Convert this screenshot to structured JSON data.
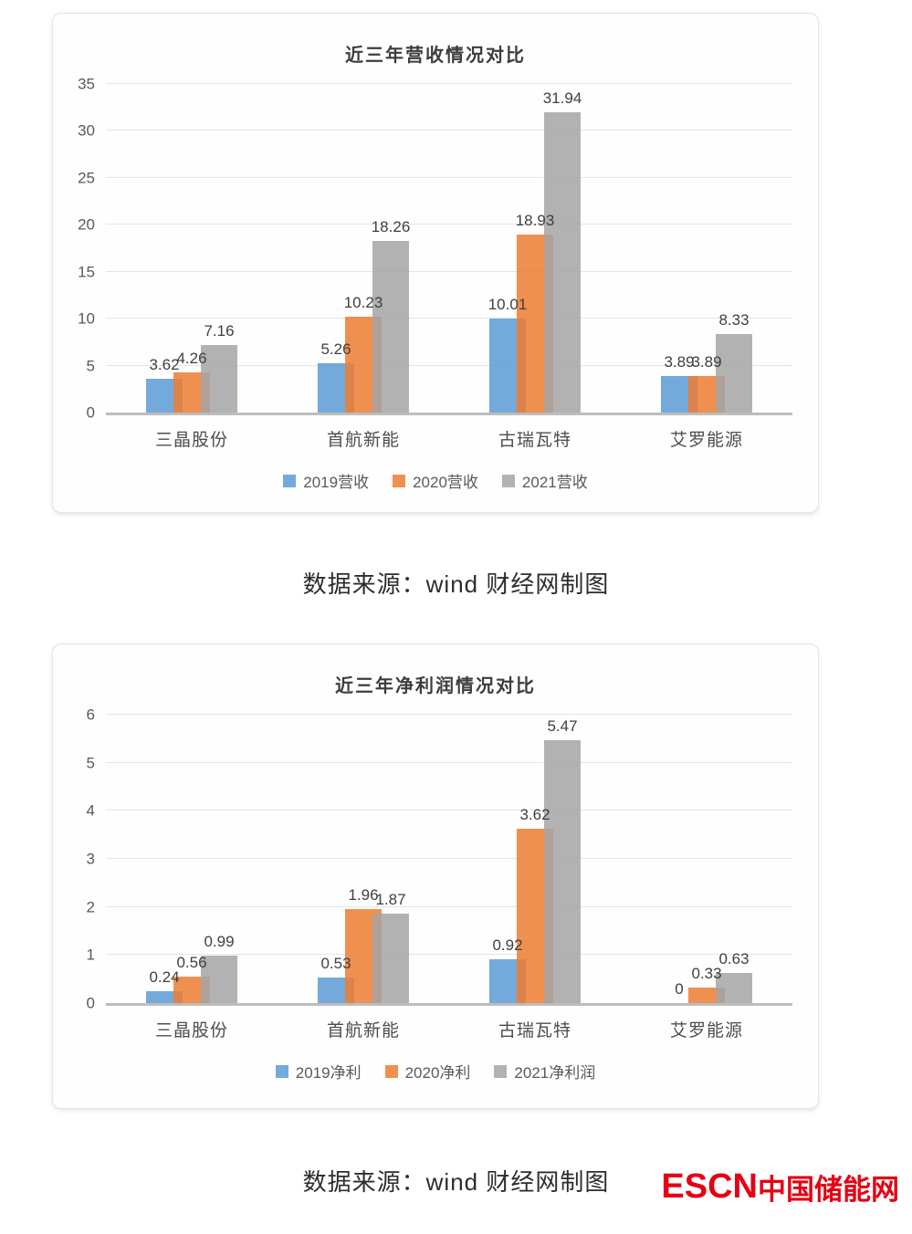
{
  "captions": {
    "source_note": "数据来源：wind 财经网制图"
  },
  "logo": {
    "text_en": "ESCN",
    "text_cn": "中国储能网",
    "color": "#e60012"
  },
  "colors": {
    "series_blue": "#5B9BD5",
    "series_orange": "#ED7D31",
    "series_gray": "#A5A5A5",
    "gridline": "#e5e5e5",
    "axis_line": "#bdbdbd"
  },
  "chart_data": [
    {
      "type": "bar",
      "title": "近三年营收情况对比",
      "categories": [
        "三晶股份",
        "首航新能",
        "古瑞瓦特",
        "艾罗能源"
      ],
      "series": [
        {
          "name": "2019营收",
          "color": "#5B9BD5",
          "values": [
            3.62,
            5.26,
            10.01,
            3.89
          ]
        },
        {
          "name": "2020营收",
          "color": "#ED7D31",
          "values": [
            4.26,
            10.23,
            18.93,
            3.89
          ]
        },
        {
          "name": "2021营收",
          "color": "#A5A5A5",
          "values": [
            7.16,
            18.26,
            31.94,
            8.33
          ]
        }
      ],
      "xlabel": "",
      "ylabel": "",
      "ylim": [
        0,
        35
      ],
      "yticks": [
        0,
        5,
        10,
        15,
        20,
        25,
        30,
        35
      ],
      "grid": true,
      "data_labels": true,
      "legend_position": "bottom"
    },
    {
      "type": "bar",
      "title": "近三年净利润情况对比",
      "categories": [
        "三晶股份",
        "首航新能",
        "古瑞瓦特",
        "艾罗能源"
      ],
      "series": [
        {
          "name": "2019净利",
          "color": "#5B9BD5",
          "values": [
            0.24,
            0.53,
            0.92,
            0
          ]
        },
        {
          "name": "2020净利",
          "color": "#ED7D31",
          "values": [
            0.56,
            1.96,
            3.62,
            0.33
          ]
        },
        {
          "name": "2021净利润",
          "color": "#A5A5A5",
          "values": [
            0.99,
            1.87,
            5.47,
            0.63
          ]
        }
      ],
      "xlabel": "",
      "ylabel": "",
      "ylim": [
        0,
        6
      ],
      "yticks": [
        0,
        1,
        2,
        3,
        4,
        5,
        6
      ],
      "grid": true,
      "data_labels": true,
      "legend_position": "bottom"
    }
  ]
}
